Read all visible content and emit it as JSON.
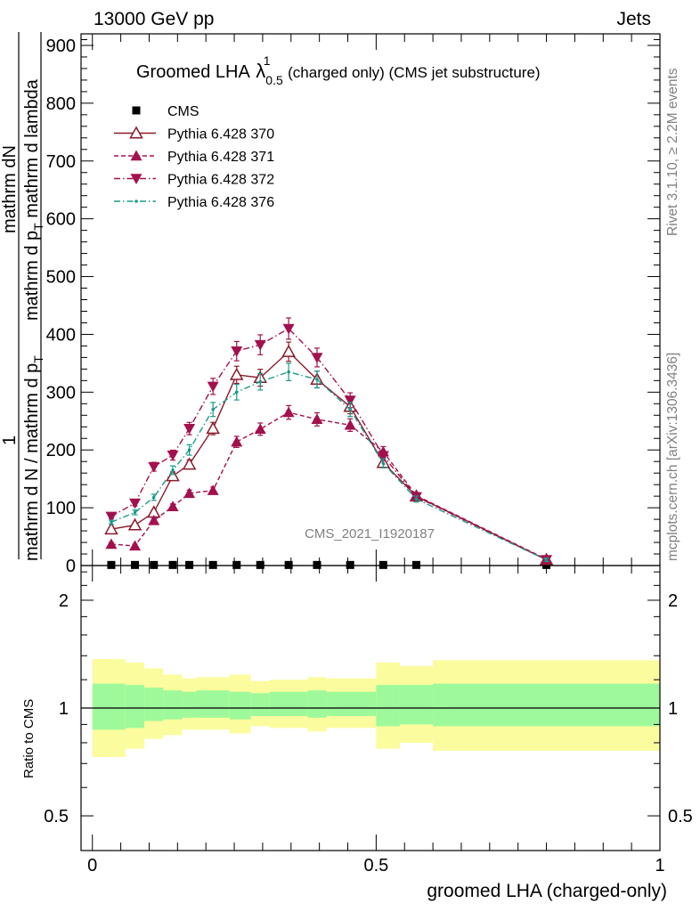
{
  "header": {
    "left": "13000 GeV pp",
    "right": "Jets"
  },
  "side_text": {
    "rivet": "Rivet 3.1.10, ≥ 2.2M events",
    "mcplots": "mcplots.cern.ch [arXiv:1306.3436]"
  },
  "chart_data": {
    "type": "line",
    "title": {
      "main": "Groomed LHA",
      "lambda": "λ",
      "superscript": "1",
      "subscript": "0.5",
      "rest": "(charged only) (CMS jet substructure)"
    },
    "analysis_label": "CMS_2021_I1920187",
    "xlabel": "groomed LHA (charged-only)",
    "ylabel_numerator": "mathrm d²N",
    "ylabel_numerator_lines": [
      "mathrm d",
      "N"
    ],
    "ylabel_denominator": "mathrm d p_T mathrm d lambda",
    "ylabel_denominator_lines": [
      "mathrm d p",
      "T",
      " mathrm d lambda"
    ],
    "ylabel_prefix": "1",
    "ylabel_prefix_denominator": [
      "mathrm d N / mathrm d p",
      "T"
    ],
    "ratio_ylabel": "Ratio to CMS",
    "xlim": [
      -0.02,
      1.0
    ],
    "ylim": [
      0,
      920
    ],
    "ratio_ylim": [
      0.4,
      2.5
    ],
    "x_ticks": [
      0,
      0.5,
      1
    ],
    "x_tick_labels": [
      "0",
      "0.5",
      "1"
    ],
    "y_ticks": [
      0,
      100,
      200,
      300,
      400,
      500,
      600,
      700,
      800,
      900
    ],
    "y_tick_labels": [
      "0",
      "100",
      "200",
      "300",
      "400",
      "500",
      "600",
      "700",
      "800",
      "900"
    ],
    "ratio_ticks": [
      0.5,
      1,
      2
    ],
    "ratio_tick_labels": [
      "0.5",
      "1",
      "2"
    ],
    "legend_position": "top-left",
    "x": [
      0.0333,
      0.075,
      0.1083,
      0.1417,
      0.1708,
      0.2125,
      0.2542,
      0.2958,
      0.3458,
      0.3958,
      0.4542,
      0.5125,
      0.5708,
      0.8
    ],
    "series": [
      {
        "name": "CMS",
        "color": "#000000",
        "marker": "square",
        "linestyle": "none",
        "values": [
          1,
          1,
          1,
          1,
          1,
          1,
          1,
          1,
          1,
          1,
          1,
          1,
          1,
          1
        ]
      },
      {
        "name": "Pythia 6.428 370",
        "color": "#8b1a2a",
        "marker": "triangle-up-open",
        "linestyle": "solid",
        "values": [
          63,
          70,
          92,
          155,
          175,
          237,
          330,
          325,
          370,
          322,
          275,
          178,
          120,
          10
        ]
      },
      {
        "name": "Pythia 6.428 371",
        "color": "#a3104e",
        "marker": "triangle-up",
        "linestyle": "dashed",
        "values": [
          37,
          34,
          78,
          102,
          125,
          130,
          214,
          236,
          265,
          253,
          243,
          197,
          121,
          11
        ]
      },
      {
        "name": "Pythia 6.428 372",
        "color": "#a3104e",
        "marker": "triangle-down",
        "linestyle": "dashdot",
        "values": [
          85,
          108,
          171,
          191,
          237,
          310,
          371,
          382,
          410,
          360,
          286,
          190,
          119,
          10
        ]
      },
      {
        "name": "Pythia 6.428 376",
        "color": "#199a8a",
        "marker": "dot",
        "linestyle": "dashdot",
        "values": [
          75,
          92,
          118,
          165,
          200,
          270,
          300,
          318,
          335,
          322,
          270,
          177,
          115,
          10
        ]
      }
    ],
    "ratio_band": {
      "edges": [
        0,
        0.0583,
        0.0917,
        0.125,
        0.1583,
        0.1833,
        0.2417,
        0.2792,
        0.3125,
        0.3792,
        0.4125,
        0.5,
        0.5417,
        0.6,
        1.0
      ],
      "inner_lo": [
        0.87,
        0.88,
        0.92,
        0.93,
        0.94,
        0.94,
        0.93,
        0.95,
        0.95,
        0.94,
        0.95,
        0.89,
        0.9,
        0.89
      ],
      "inner_hi": [
        1.17,
        1.16,
        1.14,
        1.12,
        1.11,
        1.12,
        1.11,
        1.1,
        1.11,
        1.12,
        1.11,
        1.16,
        1.16,
        1.17
      ],
      "outer_lo": [
        0.73,
        0.77,
        0.82,
        0.84,
        0.87,
        0.87,
        0.85,
        0.89,
        0.88,
        0.86,
        0.88,
        0.77,
        0.8,
        0.76
      ],
      "outer_hi": [
        1.37,
        1.34,
        1.29,
        1.24,
        1.21,
        1.22,
        1.24,
        1.19,
        1.2,
        1.22,
        1.21,
        1.34,
        1.31,
        1.36
      ],
      "inner_color": "#9ef99a",
      "outer_color": "#fbfc9e"
    }
  }
}
